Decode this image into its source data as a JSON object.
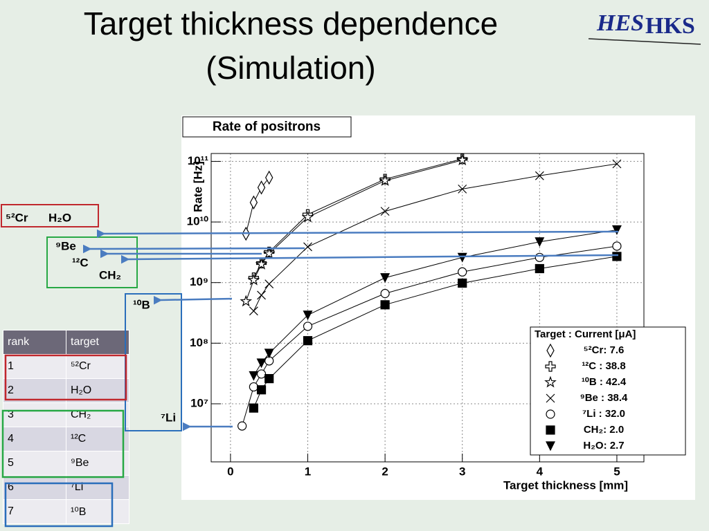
{
  "title": [
    "Target thickness dependence",
    "(Simulation)"
  ],
  "logo": [
    "HES",
    "HKS"
  ],
  "annotations": [
    "⁵²Cr",
    "H₂O",
    "⁹Be",
    "¹²C",
    "CH₂",
    "¹⁰B",
    "⁷Li"
  ],
  "table": {
    "header": [
      "rank",
      "target"
    ],
    "rows": [
      [
        "1",
        "⁵²Cr"
      ],
      [
        "2",
        "H₂O"
      ],
      [
        "3",
        "CH₂"
      ],
      [
        "4",
        "¹²C"
      ],
      [
        "5",
        "⁹Be"
      ],
      [
        "6",
        "⁷Li"
      ],
      [
        "7",
        "¹⁰B"
      ]
    ]
  },
  "chart_data": {
    "type": "line",
    "title": "Rate of positrons",
    "x_label": "Target thickness [mm]",
    "y_label": "Rate [Hz]",
    "log_y": true,
    "grid": true,
    "legend": "lower right",
    "legend_title": "Target : Current [μA]",
    "xlim": [
      -0.25,
      5.35
    ],
    "ylim": [
      1100000,
      135000000000
    ],
    "xticks": [
      0,
      1,
      2,
      3,
      4,
      5
    ],
    "yticks": [
      {
        "value": 10000000,
        "label": "10⁷"
      },
      {
        "value": 100000000,
        "label": "10⁸"
      },
      {
        "value": 1000000000,
        "label": "10⁹"
      },
      {
        "value": 10000000000,
        "label": "10¹⁰"
      },
      {
        "value": 100000000000,
        "label": "10¹¹"
      }
    ],
    "series": [
      {
        "name": "⁵²Cr: 7.6",
        "marker": "diamond",
        "color": "#000000",
        "x": [
          0.2,
          0.3,
          0.4,
          0.5
        ],
        "values": [
          6400000000,
          21000000000,
          37000000000,
          54000000000
        ]
      },
      {
        "name": "¹²C : 38.8",
        "marker": "cross",
        "color": "#000000",
        "x": [
          0.3,
          0.4,
          0.5,
          1,
          2,
          3
        ],
        "values": [
          1200000000,
          2100000000,
          3200000000,
          13300000000,
          51000000000,
          110000000000
        ]
      },
      {
        "name": "¹⁰B : 42.4",
        "marker": "star",
        "color": "#000000",
        "x": [
          0.2,
          0.3,
          0.4,
          0.5,
          1,
          2,
          3
        ],
        "values": [
          490000000,
          1100000000,
          2000000000,
          3000000000,
          12000000000,
          48000000000,
          105000000000
        ]
      },
      {
        "name": "⁹Be : 38.4",
        "marker": "x",
        "color": "#000000",
        "x": [
          0.3,
          0.4,
          0.5,
          1,
          2,
          3,
          4,
          5
        ],
        "values": [
          340000000,
          620000000,
          950000000,
          3900000000,
          15000000000,
          35000000000,
          58000000000,
          91000000000
        ]
      },
      {
        "name": "⁷Li : 32.0",
        "marker": "circle",
        "color": "#000000",
        "x": [
          0.15,
          0.3,
          0.4,
          0.5,
          1,
          2,
          3,
          4,
          5
        ],
        "values": [
          4300000,
          19000000,
          31000000,
          51000000,
          190000000,
          660000000,
          1500000000,
          2600000000,
          4000000000
        ]
      },
      {
        "name": "CH₂: 2.0",
        "marker": "square",
        "color": "#000000",
        "x": [
          0.3,
          0.4,
          0.5,
          1,
          2,
          3,
          4,
          5
        ],
        "values": [
          8500000,
          17000000,
          26000000,
          110000000,
          430000000,
          980000000,
          1700000000,
          2700000000
        ]
      },
      {
        "name": "H₂O: 2.7",
        "marker": "triangle_down",
        "color": "#000000",
        "x": [
          0.3,
          0.4,
          0.5,
          1,
          2,
          3,
          4,
          5
        ],
        "values": [
          29000000,
          47000000,
          68000000,
          290000000,
          1200000000,
          2600000000,
          4700000000,
          7400000000
        ]
      }
    ]
  }
}
